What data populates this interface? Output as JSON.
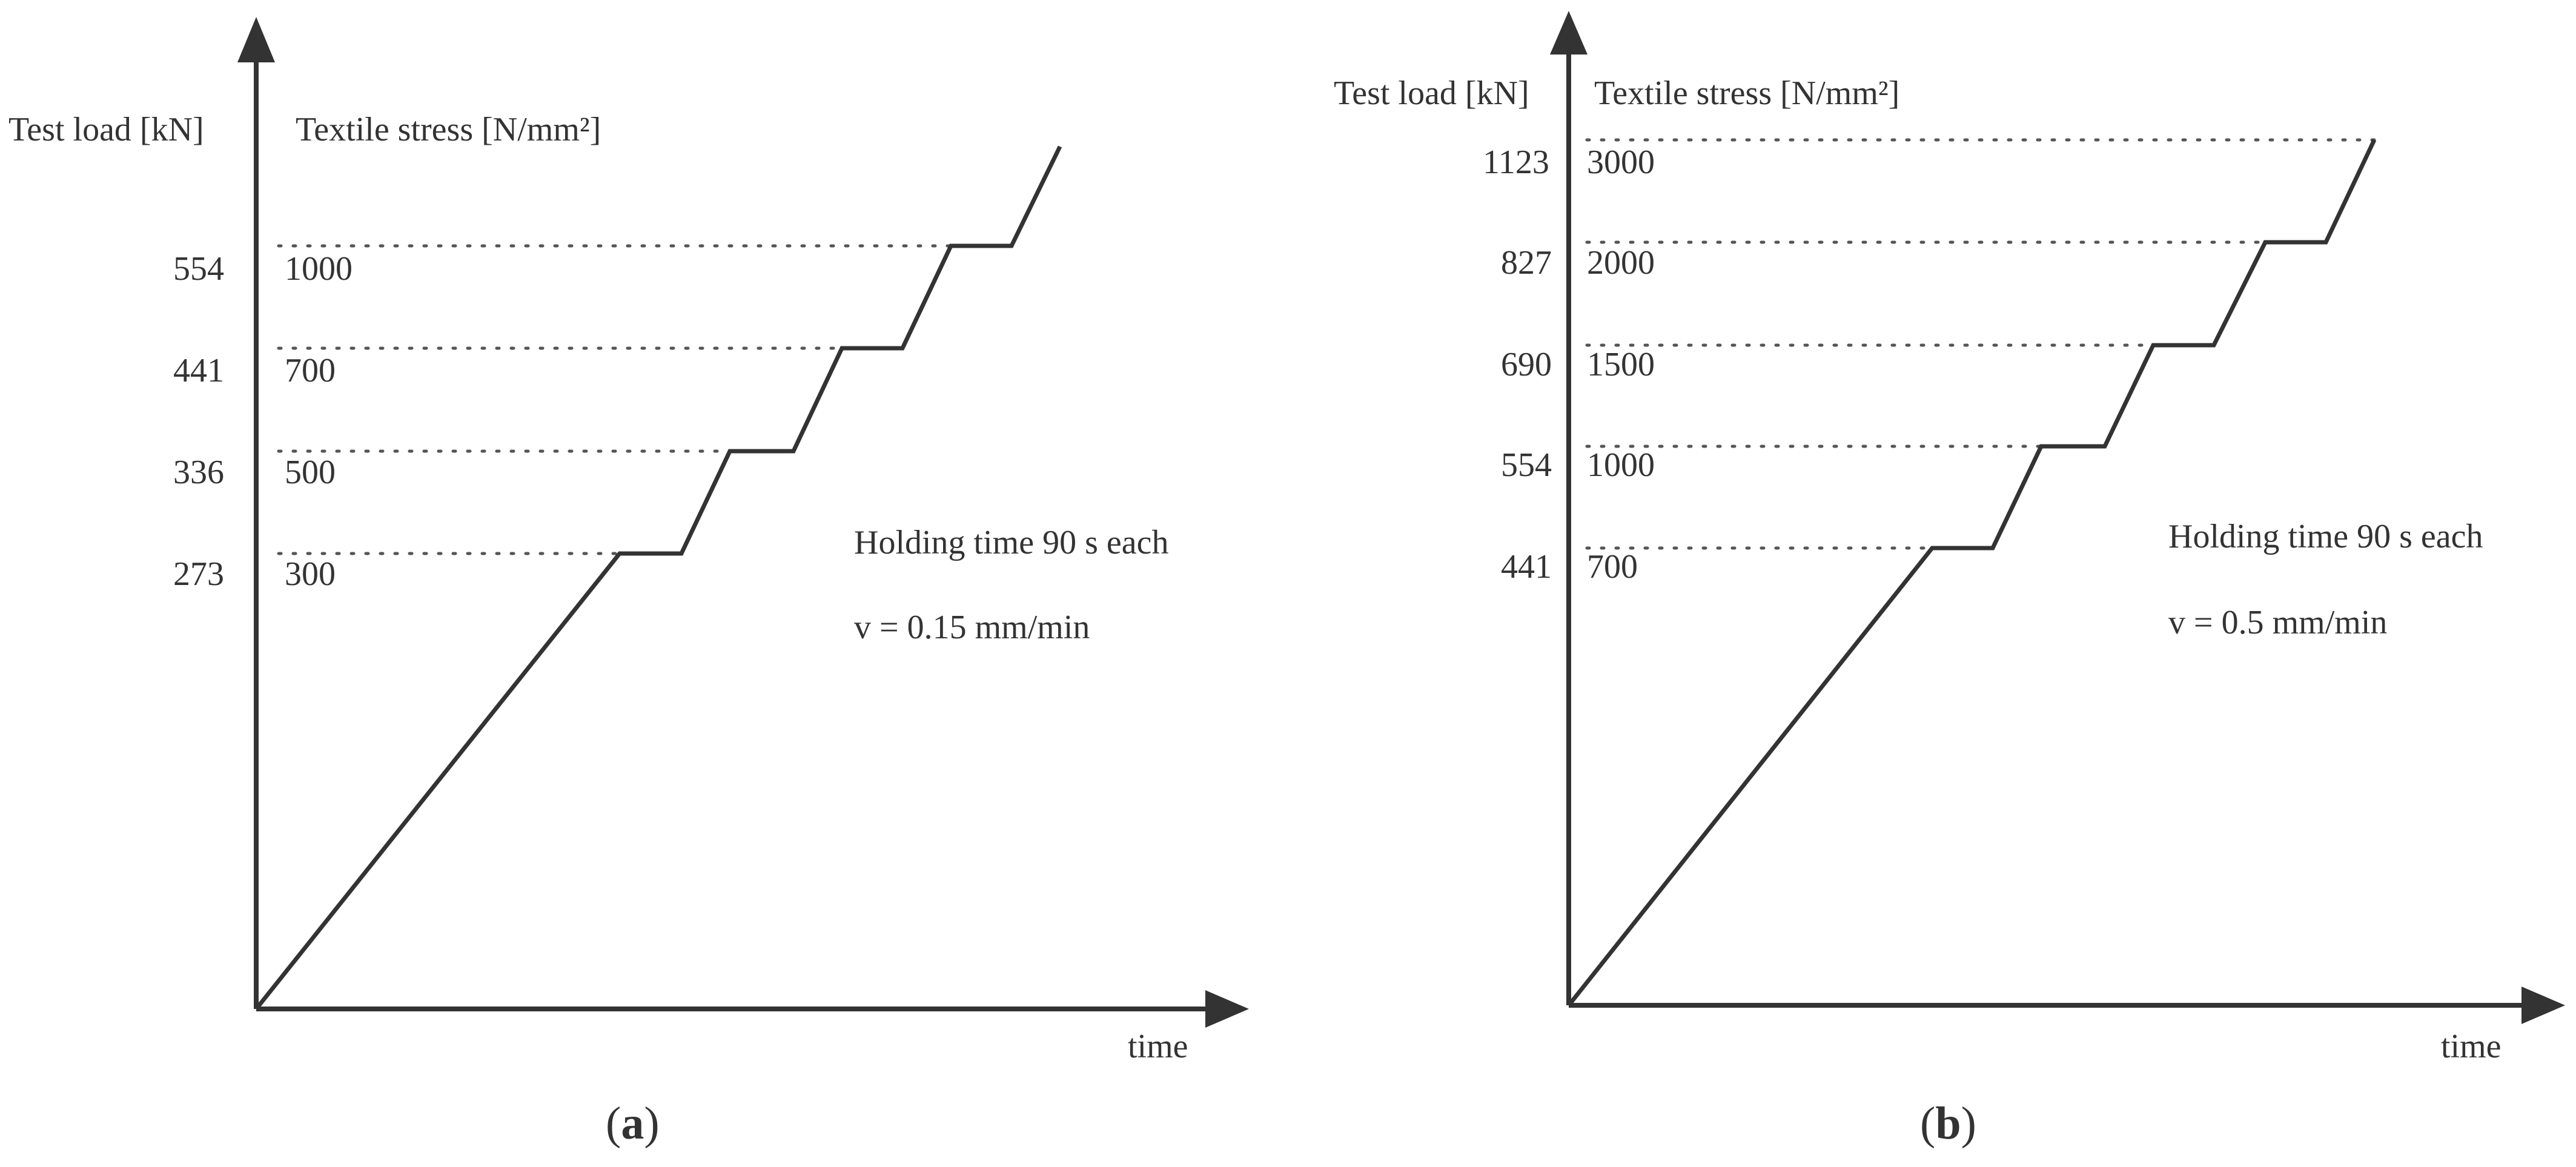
{
  "panels": [
    {
      "id": "a",
      "y_axis_label_load": "Test load [kN]",
      "y_axis_label_stress": "Textile stress [N/mm²]",
      "x_axis_label": "time",
      "annotation_holding": "Holding time 90 s each",
      "annotation_speed": "v = 0.15 mm/min",
      "caption_open": "(",
      "caption_letter": "a",
      "caption_close": ")",
      "levels": [
        {
          "load": "273",
          "stress": "300"
        },
        {
          "load": "336",
          "stress": "500"
        },
        {
          "load": "441",
          "stress": "700"
        },
        {
          "load": "554",
          "stress": "1000"
        }
      ]
    },
    {
      "id": "b",
      "y_axis_label_load": "Test load [kN]",
      "y_axis_label_stress": "Textile stress [N/mm²]",
      "x_axis_label": "time",
      "annotation_holding": "Holding time 90 s each",
      "annotation_speed": "v = 0.5 mm/min",
      "caption_open": "(",
      "caption_letter": "b",
      "caption_close": ")",
      "levels": [
        {
          "load": "441",
          "stress": "700"
        },
        {
          "load": "554",
          "stress": "1000"
        },
        {
          "load": "690",
          "stress": "1500"
        },
        {
          "load": "827",
          "stress": "2000"
        },
        {
          "load": "1123",
          "stress": "3000"
        }
      ]
    }
  ]
}
